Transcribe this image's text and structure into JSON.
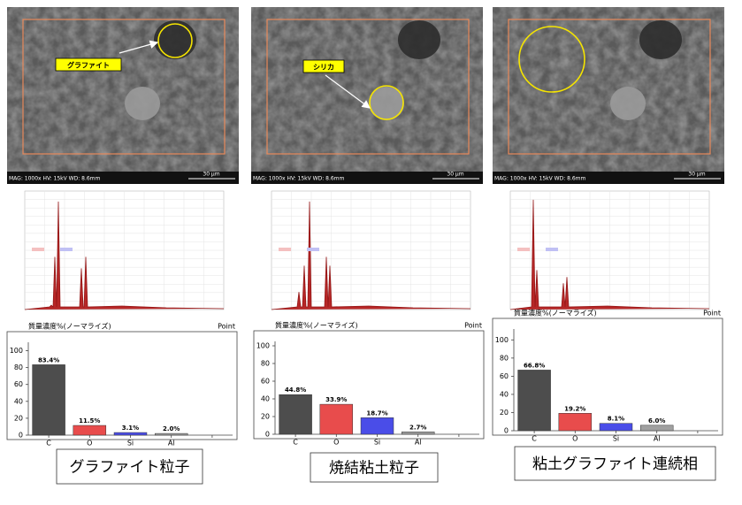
{
  "panels": [
    {
      "sem": {
        "info": "MAG: 1000x  HV: 15kV  WD: 8.6mm",
        "scale": "30 µm",
        "annotation": "グラファイト"
      },
      "label": "グラファイト粒子"
    },
    {
      "sem": {
        "info": "MAG: 1000x  HV: 15kV  WD: 8.6mm",
        "scale": "30 µm",
        "annotation": "シリカ"
      },
      "label": "焼結粘土粒子"
    },
    {
      "sem": {
        "info": "MAG: 1000x  HV: 15kV  WD: 8.6mm",
        "scale": "30 µm"
      },
      "label": "粘土グラファイト連続相"
    }
  ],
  "chart_data": [
    {
      "type": "bar",
      "title": "質量濃度%(ノーマライズ)",
      "mode_label": "Point",
      "categories": [
        "C",
        "O",
        "Si",
        "Al"
      ],
      "values": [
        83.4,
        11.5,
        3.1,
        2.0
      ],
      "value_labels": [
        "83.4%",
        "11.5%",
        "3.1%",
        "2.0%"
      ],
      "colors": [
        "#4d4d4d",
        "#e84c4c",
        "#4a4de8",
        "#a0a0a0"
      ],
      "ylim": [
        0,
        110
      ],
      "yticks": [
        0,
        20,
        40,
        60,
        80,
        100
      ]
    },
    {
      "type": "bar",
      "title": "質量濃度%(ノーマライズ)",
      "mode_label": "Point",
      "categories": [
        "C",
        "O",
        "Si",
        "Al"
      ],
      "values": [
        44.8,
        33.9,
        18.7,
        2.7
      ],
      "value_labels": [
        "44.8%",
        "33.9%",
        "18.7%",
        "2.7%"
      ],
      "colors": [
        "#4d4d4d",
        "#e84c4c",
        "#4a4de8",
        "#a0a0a0"
      ],
      "ylim": [
        0,
        105
      ],
      "yticks": [
        0,
        20,
        40,
        60,
        80,
        100
      ]
    },
    {
      "type": "bar",
      "title": "質量濃度%(ノーマライズ)",
      "mode_label": "Point",
      "categories": [
        "C",
        "O",
        "Si",
        "Al"
      ],
      "values": [
        66.8,
        19.2,
        8.1,
        6.0
      ],
      "value_labels": [
        "66.8%",
        "19.2%",
        "8.1%",
        "6.0%"
      ],
      "colors": [
        "#4d4d4d",
        "#e84c4c",
        "#4a4de8",
        "#a0a0a0"
      ],
      "ylim": [
        0,
        112
      ],
      "yticks": [
        0,
        20,
        40,
        60,
        80,
        100
      ]
    }
  ]
}
